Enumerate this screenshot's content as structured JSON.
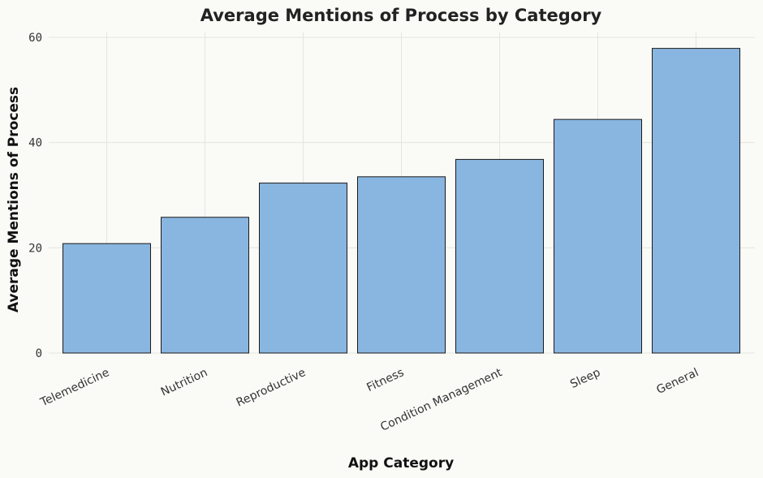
{
  "chart_data": {
    "type": "bar",
    "title": "Average Mentions of Process by Category",
    "xlabel": "App Category",
    "ylabel": "Average Mentions of Process",
    "categories": [
      "Telemedicine",
      "Nutrition",
      "Reproductive",
      "Fitness",
      "Condition Management",
      "Sleep",
      "General"
    ],
    "values": [
      20.8,
      25.8,
      32.3,
      33.5,
      36.8,
      44.4,
      57.9
    ],
    "ylim": [
      0,
      61
    ],
    "yticks": [
      "0",
      "20",
      "40",
      "60"
    ],
    "grid": true,
    "bar_color": "#89b6e0",
    "background": "#fafaf7"
  }
}
